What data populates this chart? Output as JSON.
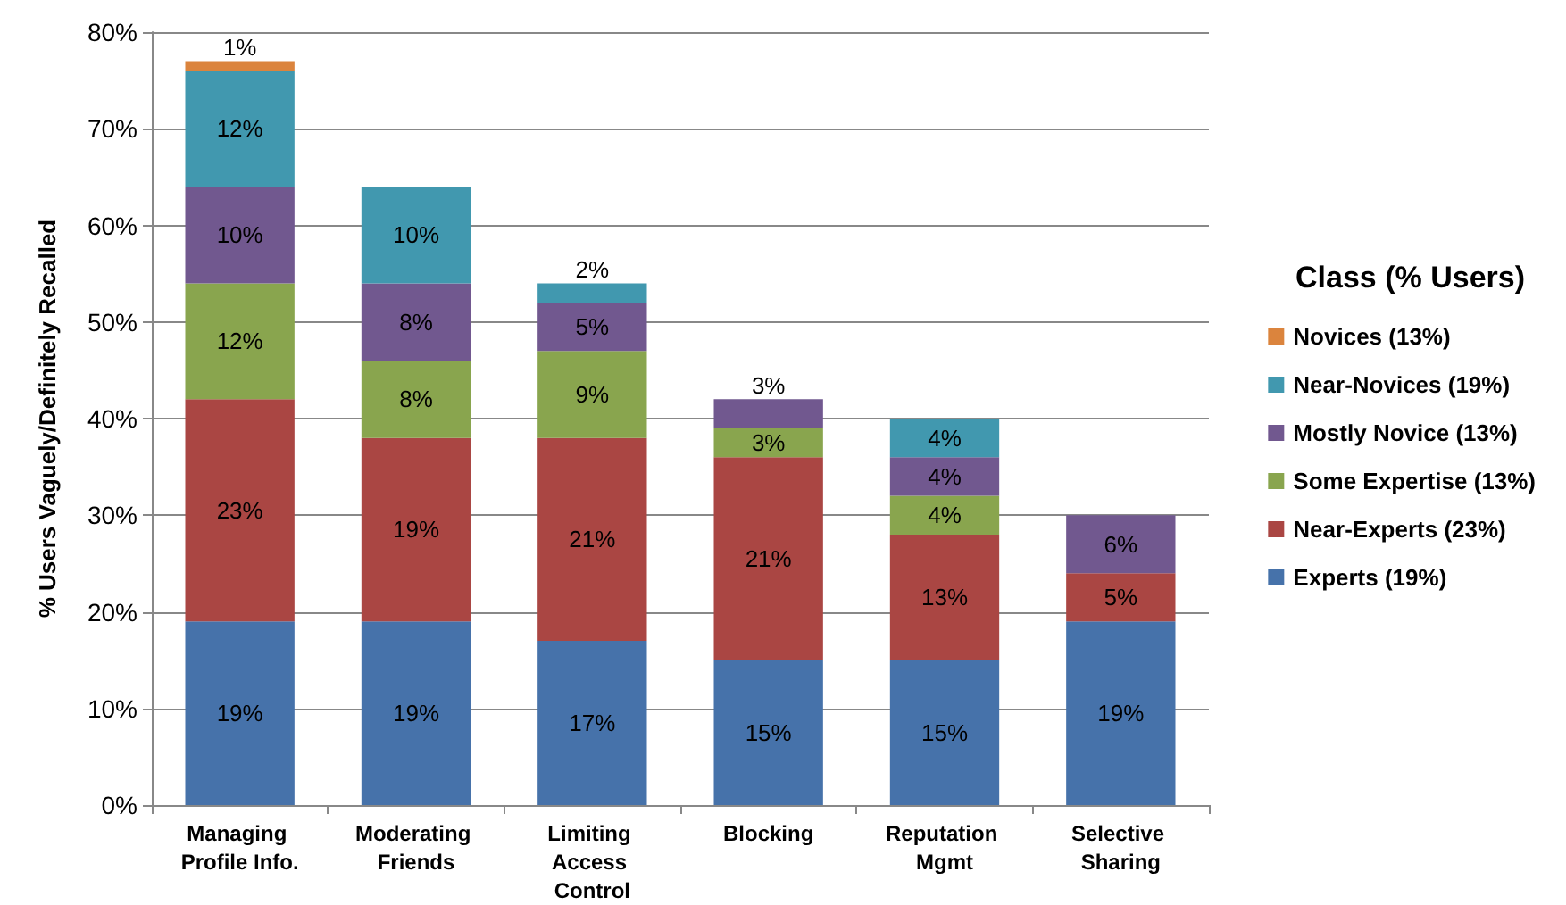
{
  "chart_data": {
    "type": "bar",
    "stacked": true,
    "ylabel": "% Users Vaguely/Definitely Recalled",
    "legend_title": "Class (% Users)",
    "legend": "right",
    "grid": "y",
    "categories": [
      "Managing Profile Info.",
      "Moderating Friends",
      "Limiting Access Control",
      "Blocking",
      "Reputation Mgmt",
      "Selective Sharing"
    ],
    "ylim": [
      0,
      80
    ],
    "yticks": [
      {
        "value": 0,
        "label": "0%"
      },
      {
        "value": 10,
        "label": "10%"
      },
      {
        "value": 20,
        "label": "20%"
      },
      {
        "value": 30,
        "label": "30%"
      },
      {
        "value": 40,
        "label": "40%"
      },
      {
        "value": 50,
        "label": "50%"
      },
      {
        "value": 60,
        "label": "60%"
      },
      {
        "value": 70,
        "label": "70%"
      },
      {
        "value": 80,
        "label": "80%"
      }
    ],
    "series": [
      {
        "name": "Experts (19%)",
        "color": "#4672aa",
        "values": [
          19,
          19,
          17,
          15,
          15,
          19
        ],
        "value_labels": [
          "19%",
          "19%",
          "17%",
          "15%",
          "15%",
          "19%"
        ]
      },
      {
        "name": "Near-Experts (23%)",
        "color": "#aa4643",
        "values": [
          23,
          19,
          21,
          21,
          13,
          5
        ],
        "value_labels": [
          "23%",
          "19%",
          "21%",
          "21%",
          "13%",
          "5%"
        ]
      },
      {
        "name": "Some Expertise (13%)",
        "color": "#89a54e",
        "values": [
          12,
          8,
          9,
          3,
          4,
          null
        ],
        "value_labels": [
          "12%",
          "8%",
          "9%",
          "3%",
          "4%",
          null
        ]
      },
      {
        "name": "Mostly Novice (13%)",
        "color": "#71588f",
        "values": [
          10,
          8,
          5,
          3,
          4,
          6
        ],
        "value_labels": [
          "10%",
          "8%",
          "5%",
          "3%",
          "4%",
          "6%"
        ]
      },
      {
        "name": "Near-Novices (19%)",
        "color": "#4198af",
        "values": [
          12,
          10,
          2,
          null,
          4,
          null
        ],
        "value_labels": [
          "12%",
          "10%",
          "2%",
          null,
          "4%",
          null
        ]
      },
      {
        "name": "Novices (13%)",
        "color": "#db843d",
        "values": [
          1,
          null,
          null,
          null,
          null,
          null
        ],
        "value_labels": [
          "1%",
          null,
          null,
          null,
          null,
          null
        ]
      }
    ]
  }
}
